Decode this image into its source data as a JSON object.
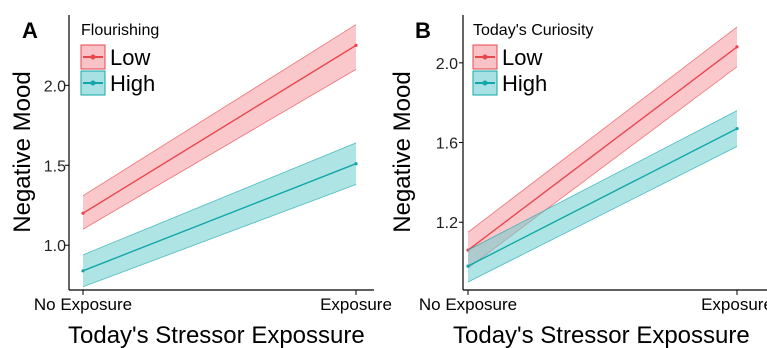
{
  "colors": {
    "low": "#e8474d",
    "low_fill": "#f59aa0",
    "high": "#13a6a9",
    "high_fill": "#6ecdd0"
  },
  "chart_data": [
    {
      "type": "line",
      "panel": "A",
      "legend_title": "Flourishing",
      "xlabel": "Today's Stressor Expossure",
      "ylabel": "Negative Mood",
      "categories": [
        "No Exposure",
        "Exposure"
      ],
      "y_ticks": [
        1.0,
        1.5,
        2.0
      ],
      "y_tick_labels": [
        "1.0",
        "1.5",
        "2.0"
      ],
      "ylim": [
        0.72,
        2.44
      ],
      "legend_position": "top-left",
      "series": [
        {
          "name": "Low",
          "color_key": "low",
          "values": [
            1.2,
            2.25
          ],
          "ci_lower": [
            1.1,
            2.1
          ],
          "ci_upper": [
            1.31,
            2.38
          ]
        },
        {
          "name": "High",
          "color_key": "high",
          "values": [
            0.84,
            1.51
          ],
          "ci_lower": [
            0.74,
            1.38
          ],
          "ci_upper": [
            0.94,
            1.64
          ]
        }
      ]
    },
    {
      "type": "line",
      "panel": "B",
      "legend_title": "Today's Curiosity",
      "xlabel": "Today's Stressor Expossure",
      "ylabel": "Negative Mood",
      "categories": [
        "No Exposure",
        "Exposure"
      ],
      "y_ticks": [
        1.2,
        1.6,
        2.0
      ],
      "y_tick_labels": [
        "1.2",
        "1.6",
        "2.0"
      ],
      "ylim": [
        0.86,
        2.24
      ],
      "legend_position": "top-left",
      "series": [
        {
          "name": "Low",
          "color_key": "low",
          "values": [
            1.06,
            2.08
          ],
          "ci_lower": [
            0.97,
            1.98
          ],
          "ci_upper": [
            1.15,
            2.18
          ]
        },
        {
          "name": "High",
          "color_key": "high",
          "values": [
            0.98,
            1.67
          ],
          "ci_lower": [
            0.9,
            1.58
          ],
          "ci_upper": [
            1.06,
            1.76
          ]
        }
      ]
    }
  ]
}
